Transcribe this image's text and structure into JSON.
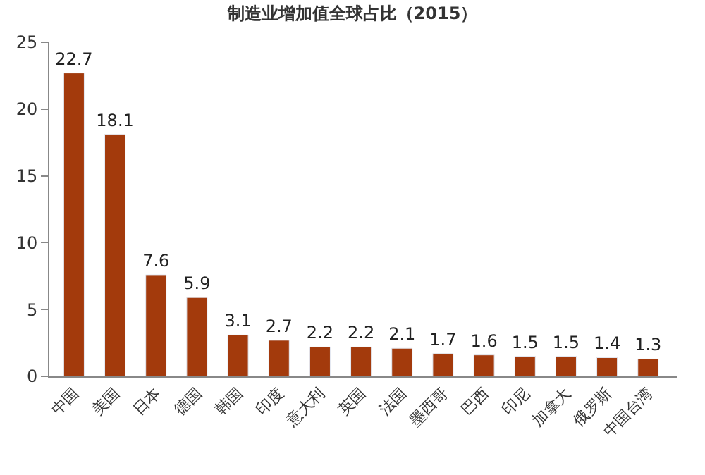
{
  "chart_data": {
    "type": "bar",
    "title": "制造业增加值全球占比（2015）",
    "categories": [
      "中国",
      "美国",
      "日本",
      "德国",
      "韩国",
      "印度",
      "意大利",
      "英国",
      "法国",
      "墨西哥",
      "巴西",
      "印尼",
      "加拿大",
      "俄罗斯",
      "中国台湾"
    ],
    "values": [
      22.7,
      18.1,
      7.6,
      5.9,
      3.1,
      2.7,
      2.2,
      2.2,
      2.1,
      1.7,
      1.6,
      1.5,
      1.5,
      1.4,
      1.3
    ],
    "color": "#a33a0c",
    "ylim": [
      0,
      25
    ],
    "yticks": [
      0,
      5,
      10,
      15,
      20,
      25
    ],
    "data_labels": true,
    "legend": false
  }
}
